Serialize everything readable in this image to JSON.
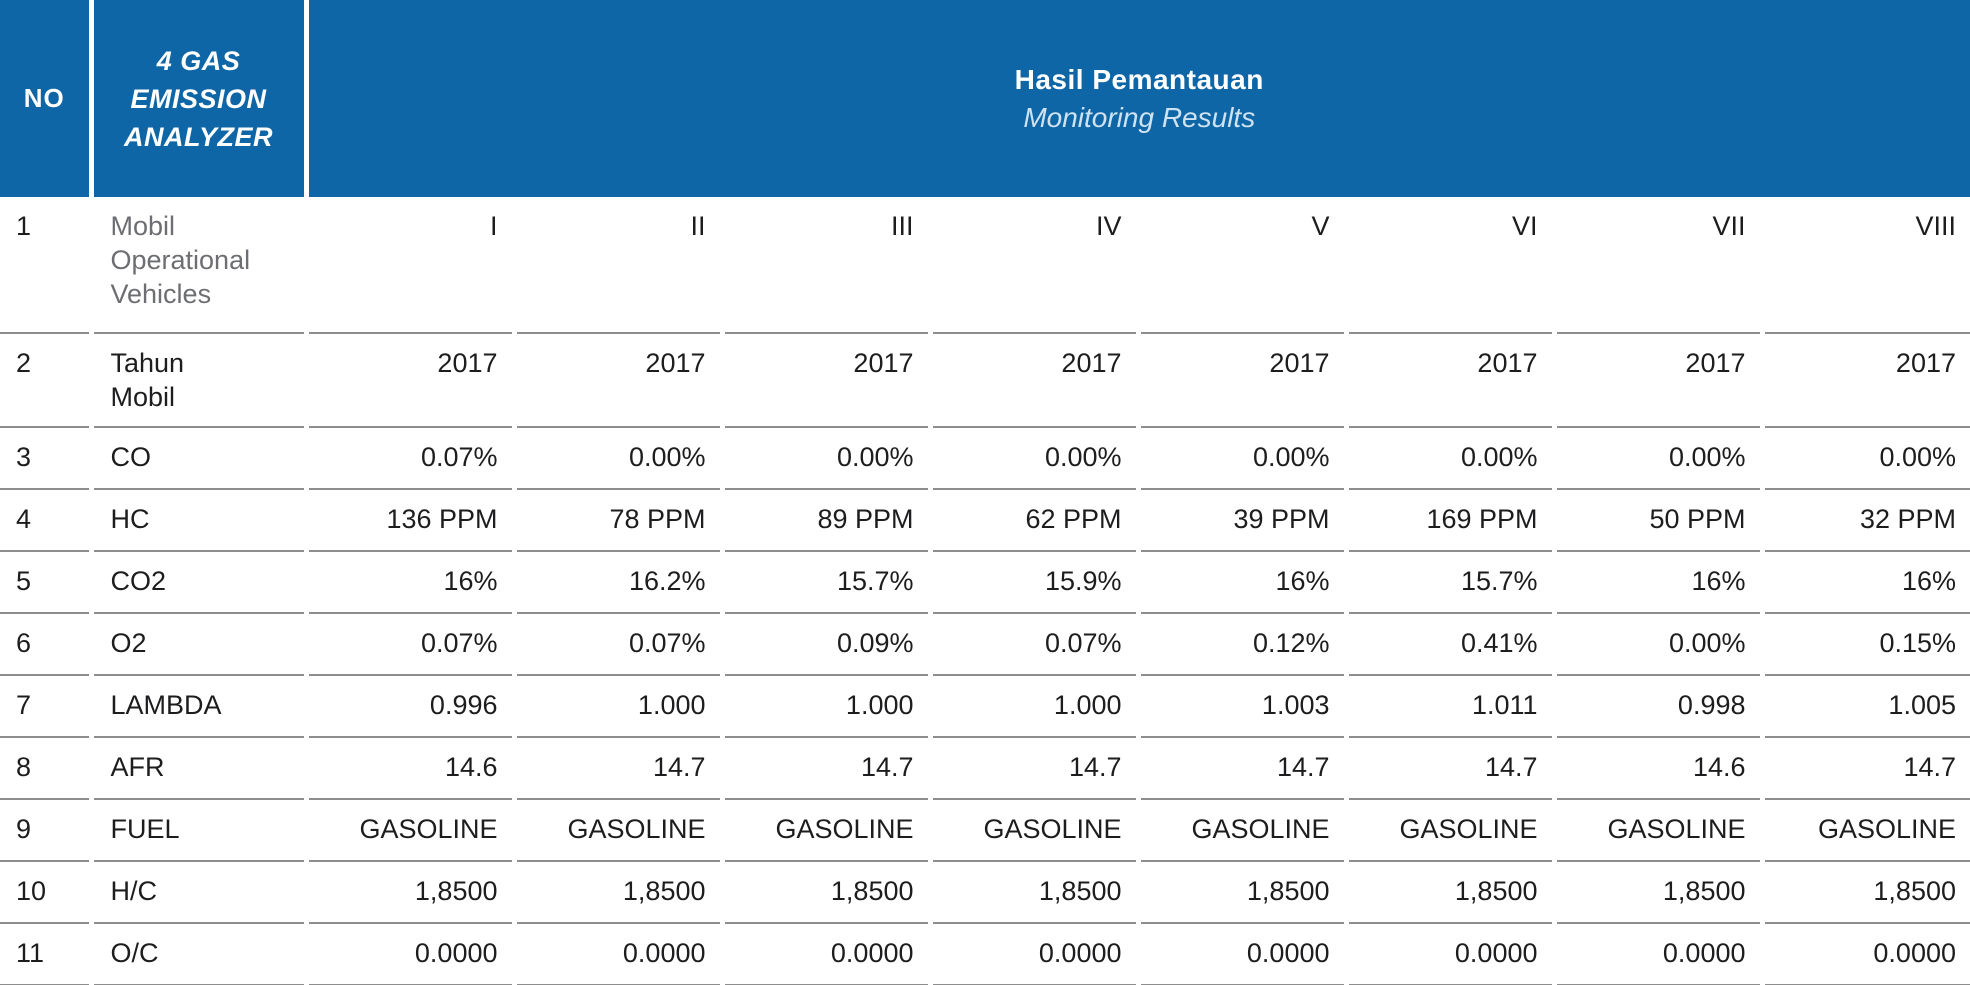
{
  "header": {
    "no": "NO",
    "analyzer": "4 GAS\nEMISSION\nANALYZER",
    "results_title": "Hasil Pemantauan",
    "results_subtitle": "Monitoring Results"
  },
  "table": {
    "rows": [
      {
        "no": "1",
        "label": "Mobil\nOperational\nVehicles",
        "muted": true,
        "values": [
          "I",
          "II",
          "III",
          "IV",
          "V",
          "VI",
          "VII",
          "VIII"
        ]
      },
      {
        "no": "2",
        "label": "Tahun\nMobil",
        "values": [
          "2017",
          "2017",
          "2017",
          "2017",
          "2017",
          "2017",
          "2017",
          "2017"
        ]
      },
      {
        "no": "3",
        "label": "CO",
        "values": [
          "0.07%",
          "0.00%",
          "0.00%",
          "0.00%",
          "0.00%",
          "0.00%",
          "0.00%",
          "0.00%"
        ]
      },
      {
        "no": "4",
        "label": "HC",
        "values": [
          "136 PPM",
          "78 PPM",
          "89 PPM",
          "62 PPM",
          "39 PPM",
          "169 PPM",
          "50 PPM",
          "32 PPM"
        ]
      },
      {
        "no": "5",
        "label": "CO2",
        "values": [
          "16%",
          "16.2%",
          "15.7%",
          "15.9%",
          "16%",
          "15.7%",
          "16%",
          "16%"
        ]
      },
      {
        "no": "6",
        "label": "O2",
        "values": [
          "0.07%",
          "0.07%",
          "0.09%",
          "0.07%",
          "0.12%",
          "0.41%",
          "0.00%",
          "0.15%"
        ]
      },
      {
        "no": "7",
        "label": "LAMBDA",
        "values": [
          "0.996",
          "1.000",
          "1.000",
          "1.000",
          "1.003",
          "1.011",
          "0.998",
          "1.005"
        ]
      },
      {
        "no": "8",
        "label": "AFR",
        "values": [
          "14.6",
          "14.7",
          "14.7",
          "14.7",
          "14.7",
          "14.7",
          "14.6",
          "14.7"
        ]
      },
      {
        "no": "9",
        "label": "FUEL",
        "values": [
          "GASOLINE",
          "GASOLINE",
          "GASOLINE",
          "GASOLINE",
          "GASOLINE",
          "GASOLINE",
          "GASOLINE",
          "GASOLINE"
        ]
      },
      {
        "no": "10",
        "label": "H/C",
        "values": [
          "1,8500",
          "1,8500",
          "1,8500",
          "1,8500",
          "1,8500",
          "1,8500",
          "1,8500",
          "1,8500"
        ]
      },
      {
        "no": "11",
        "label": "O/C",
        "values": [
          "0.0000",
          "0.0000",
          "0.0000",
          "0.0000",
          "0.0000",
          "0.0000",
          "0.0000",
          "0.0000"
        ]
      }
    ]
  },
  "colors": {
    "header_blue": "#0E66A6",
    "subtitle_light_blue": "#CFE2F1",
    "rule_gray": "#8D8D8D",
    "text_black": "#1D1D1F",
    "muted_gray": "#6D6E71"
  }
}
